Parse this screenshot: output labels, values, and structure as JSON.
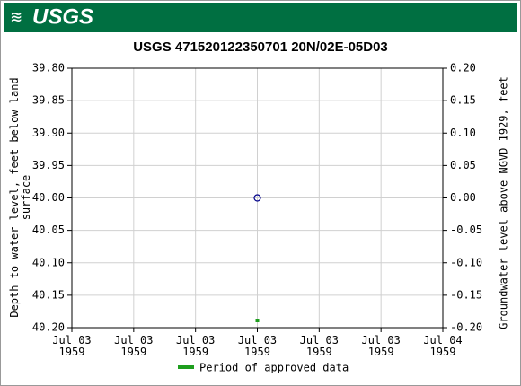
{
  "header": {
    "logo": "USGS"
  },
  "chart_data": {
    "type": "scatter",
    "title": "USGS 471520122350701 20N/02E-05D03",
    "ylabel": "Depth to water level, feet below land surface",
    "y2label": "Groundwater level above NGVD 1929, feet",
    "xlim": [
      "1959-07-03T00:00",
      "1959-07-04T00:00"
    ],
    "xticks": [
      {
        "value": "1959-07-03T00:00",
        "label": "Jul 03\n1959"
      },
      {
        "value": "1959-07-03T04:00",
        "label": "Jul 03\n1959"
      },
      {
        "value": "1959-07-03T08:00",
        "label": "Jul 03\n1959"
      },
      {
        "value": "1959-07-03T12:00",
        "label": "Jul 03\n1959"
      },
      {
        "value": "1959-07-03T16:00",
        "label": "Jul 03\n1959"
      },
      {
        "value": "1959-07-03T20:00",
        "label": "Jul 03\n1959"
      },
      {
        "value": "1959-07-04T00:00",
        "label": "Jul 04\n1959"
      }
    ],
    "ylim": [
      39.8,
      40.2
    ],
    "y_reversed": true,
    "yticks": [
      {
        "value": 39.8,
        "label": "39.80"
      },
      {
        "value": 39.85,
        "label": "39.85"
      },
      {
        "value": 39.9,
        "label": "39.90"
      },
      {
        "value": 39.95,
        "label": "39.95"
      },
      {
        "value": 40.0,
        "label": "40.00"
      },
      {
        "value": 40.05,
        "label": "40.05"
      },
      {
        "value": 40.1,
        "label": "40.10"
      },
      {
        "value": 40.15,
        "label": "40.15"
      },
      {
        "value": 40.2,
        "label": "40.20"
      }
    ],
    "y2lim": [
      -0.2,
      0.2
    ],
    "y2ticks": [
      {
        "value": 0.2,
        "label": "0.20"
      },
      {
        "value": 0.15,
        "label": "0.15"
      },
      {
        "value": 0.1,
        "label": "0.10"
      },
      {
        "value": 0.05,
        "label": "0.05"
      },
      {
        "value": 0,
        "label": "0.00"
      },
      {
        "value": -0.05,
        "label": "-0.05"
      },
      {
        "value": -0.1,
        "label": "-0.10"
      },
      {
        "value": -0.15,
        "label": "-0.15"
      },
      {
        "value": -0.2,
        "label": "-0.20"
      }
    ],
    "grid": true,
    "points": {
      "x": [
        "1959-07-03T12:00"
      ],
      "values": [
        40.0
      ],
      "color": "#00008b"
    },
    "approved_periods": {
      "name": "Period of approved data",
      "color": "#1e9e1e",
      "x": [
        "1959-07-03T12:00"
      ]
    }
  }
}
